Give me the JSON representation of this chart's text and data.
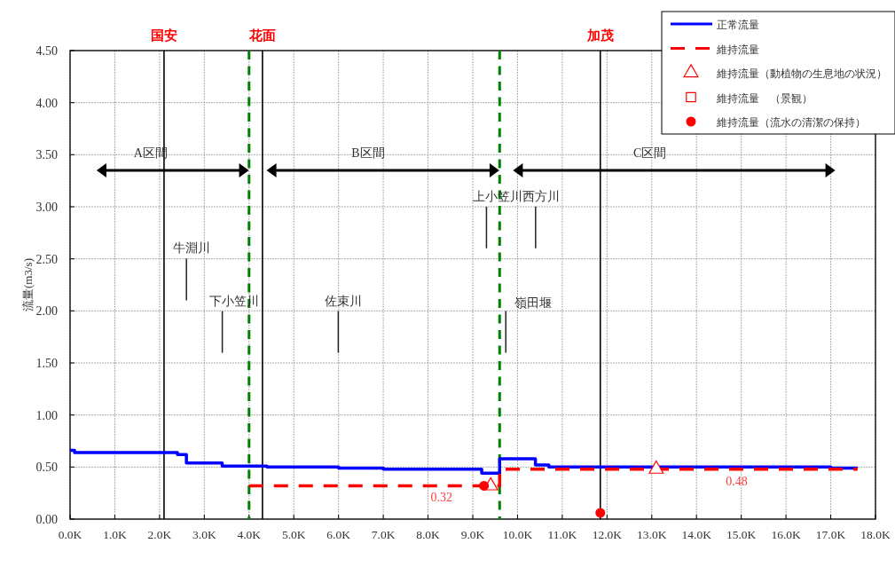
{
  "chart_data": {
    "type": "step",
    "ylabel": "流量(m3/s)",
    "xlim": [
      0,
      18
    ],
    "ylim": [
      0,
      4.5
    ],
    "xticks": [
      {
        "value": 0,
        "label": "0.0K"
      },
      {
        "value": 1,
        "label": "1.0K"
      },
      {
        "value": 2,
        "label": "2.0K"
      },
      {
        "value": 3,
        "label": "3.0K"
      },
      {
        "value": 4,
        "label": "4.0K"
      },
      {
        "value": 5,
        "label": "5.0K"
      },
      {
        "value": 6,
        "label": "6.0K"
      },
      {
        "value": 7,
        "label": "7.0K"
      },
      {
        "value": 8,
        "label": "8.0K"
      },
      {
        "value": 9,
        "label": "9.0K"
      },
      {
        "value": 10,
        "label": "10.0K"
      },
      {
        "value": 11,
        "label": "11.0K"
      },
      {
        "value": 12,
        "label": "12.0K"
      },
      {
        "value": 13,
        "label": "13.0K"
      },
      {
        "value": 14,
        "label": "14.0K"
      },
      {
        "value": 15,
        "label": "15.0K"
      },
      {
        "value": 16,
        "label": "16.0K"
      },
      {
        "value": 17,
        "label": "17.0K"
      },
      {
        "value": 18,
        "label": "18.0K"
      }
    ],
    "yticks": [
      {
        "value": 0,
        "label": "0.00"
      },
      {
        "value": 0.5,
        "label": "0.50"
      },
      {
        "value": 1,
        "label": "1.00"
      },
      {
        "value": 1.5,
        "label": "1.50"
      },
      {
        "value": 2,
        "label": "2.00"
      },
      {
        "value": 2.5,
        "label": "2.50"
      },
      {
        "value": 3,
        "label": "3.00"
      },
      {
        "value": 3.5,
        "label": "3.50"
      },
      {
        "value": 4,
        "label": "4.00"
      },
      {
        "value": 4.5,
        "label": "4.50"
      }
    ],
    "grid": true,
    "legend": "top right",
    "series": [
      {
        "name": "正常流量",
        "color": "#0000ff",
        "line_style": "solid",
        "x": [
          0,
          0.1,
          2.4,
          2.6,
          3.4,
          4.4,
          6.0,
          7.0,
          9.2,
          9.6,
          10.4,
          10.7,
          17.0,
          17.6
        ],
        "values": [
          0.66,
          0.64,
          0.62,
          0.54,
          0.51,
          0.5,
          0.49,
          0.48,
          0.44,
          0.58,
          0.52,
          0.5,
          0.49,
          0.49
        ]
      },
      {
        "name": "維持流量",
        "color": "#ff0000",
        "line_style": "dashed",
        "x": [
          4.0,
          8.3,
          9.6,
          14.9,
          17.6
        ],
        "values": [
          0.32,
          0.32,
          0.48,
          0.48,
          0.48
        ],
        "value_labels": [
          null,
          "0.32",
          null,
          "0.48",
          null
        ]
      },
      {
        "name": "維持流量（動植物の生息地の状況）",
        "type": "scatter",
        "marker": "triangle",
        "color": "#ff0000",
        "x": [
          9.4,
          13.1
        ],
        "values": [
          0.32,
          0.48
        ]
      },
      {
        "name": "維持流量　（景観）",
        "type": "scatter",
        "marker": "square",
        "color": "#ff0000"
      },
      {
        "name": "維持流量（流水の清潔の保持）",
        "type": "scatter",
        "marker": "circle",
        "color": "#ff0000",
        "x": [
          9.25,
          11.85
        ],
        "values": [
          0.32,
          0.06
        ]
      }
    ],
    "ref_lines": [
      {
        "axis": "x",
        "value": 2.1,
        "label": "国安",
        "color": "#000000",
        "line_style": "solid"
      },
      {
        "axis": "x",
        "value": 4.3,
        "label": "花面",
        "color": "#000000",
        "line_style": "solid"
      },
      {
        "axis": "x",
        "value": 11.85,
        "label": "加茂",
        "color": "#000000",
        "line_style": "solid"
      },
      {
        "axis": "x",
        "value": 4.0,
        "color": "#008000",
        "line_style": "dashed"
      },
      {
        "axis": "x",
        "value": 9.6,
        "color": "#008000",
        "line_style": "dashed"
      }
    ],
    "annotations": [
      "A区間",
      "B区間",
      "C区間",
      "牛淵川",
      "下小笠川",
      "佐束川",
      "上小笠川",
      "西方川",
      "嶺田堰"
    ]
  }
}
